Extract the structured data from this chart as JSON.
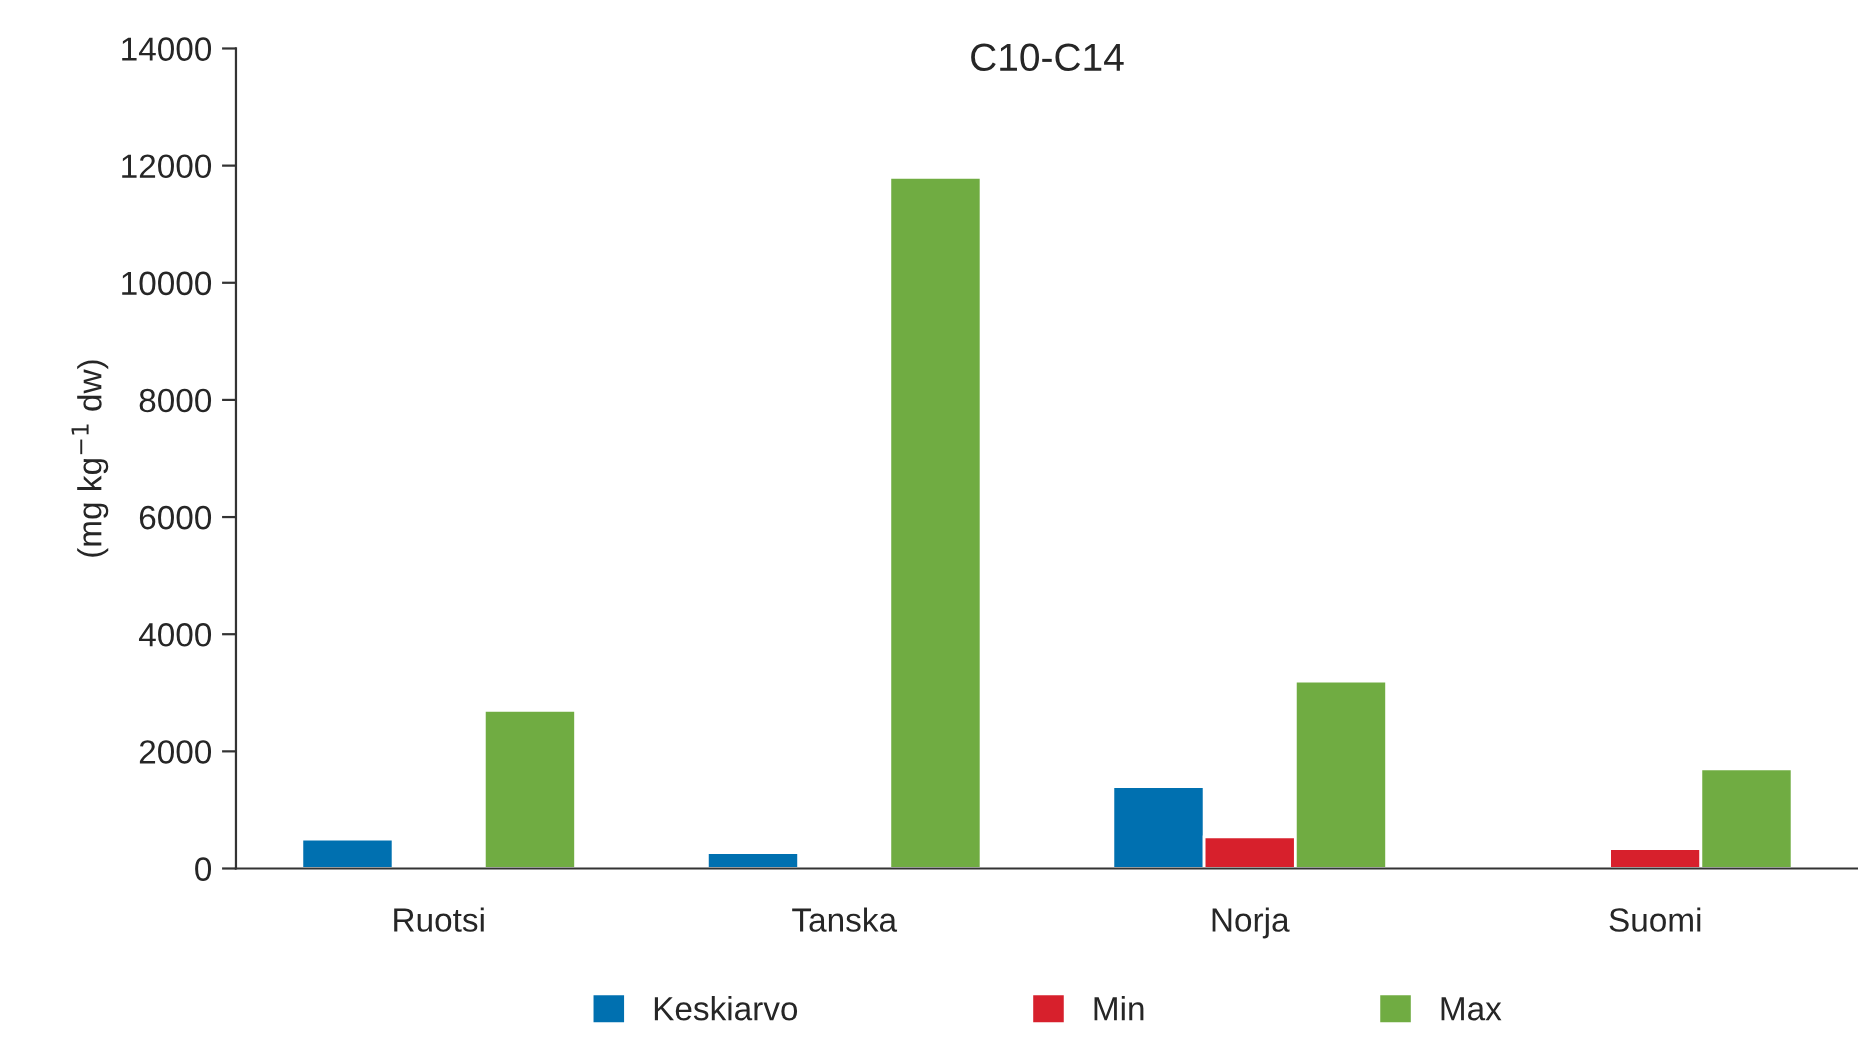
{
  "chart_data": {
    "type": "bar",
    "title": "C10-C14",
    "ylabel": "(mg kg$^{−1}$ dw)",
    "categories": [
      "Ruotsi",
      "Tanska",
      "Norja",
      "Suomi"
    ],
    "series": [
      {
        "name": "Keskiarvo",
        "color": "#0070b0",
        "values": [
          500,
          270,
          1400,
          null
        ]
      },
      {
        "name": "Min",
        "color": "#d7202c",
        "values": [
          null,
          null,
          540,
          340
        ]
      },
      {
        "name": "Max",
        "color": "#70ac42",
        "values": [
          2700,
          11800,
          3200,
          1700
        ]
      }
    ],
    "ylim": [
      0,
      14000
    ],
    "yticks": [
      0,
      2000,
      4000,
      6000,
      8000,
      10000,
      12000,
      14000
    ],
    "grid": false,
    "legend": "bottom"
  }
}
